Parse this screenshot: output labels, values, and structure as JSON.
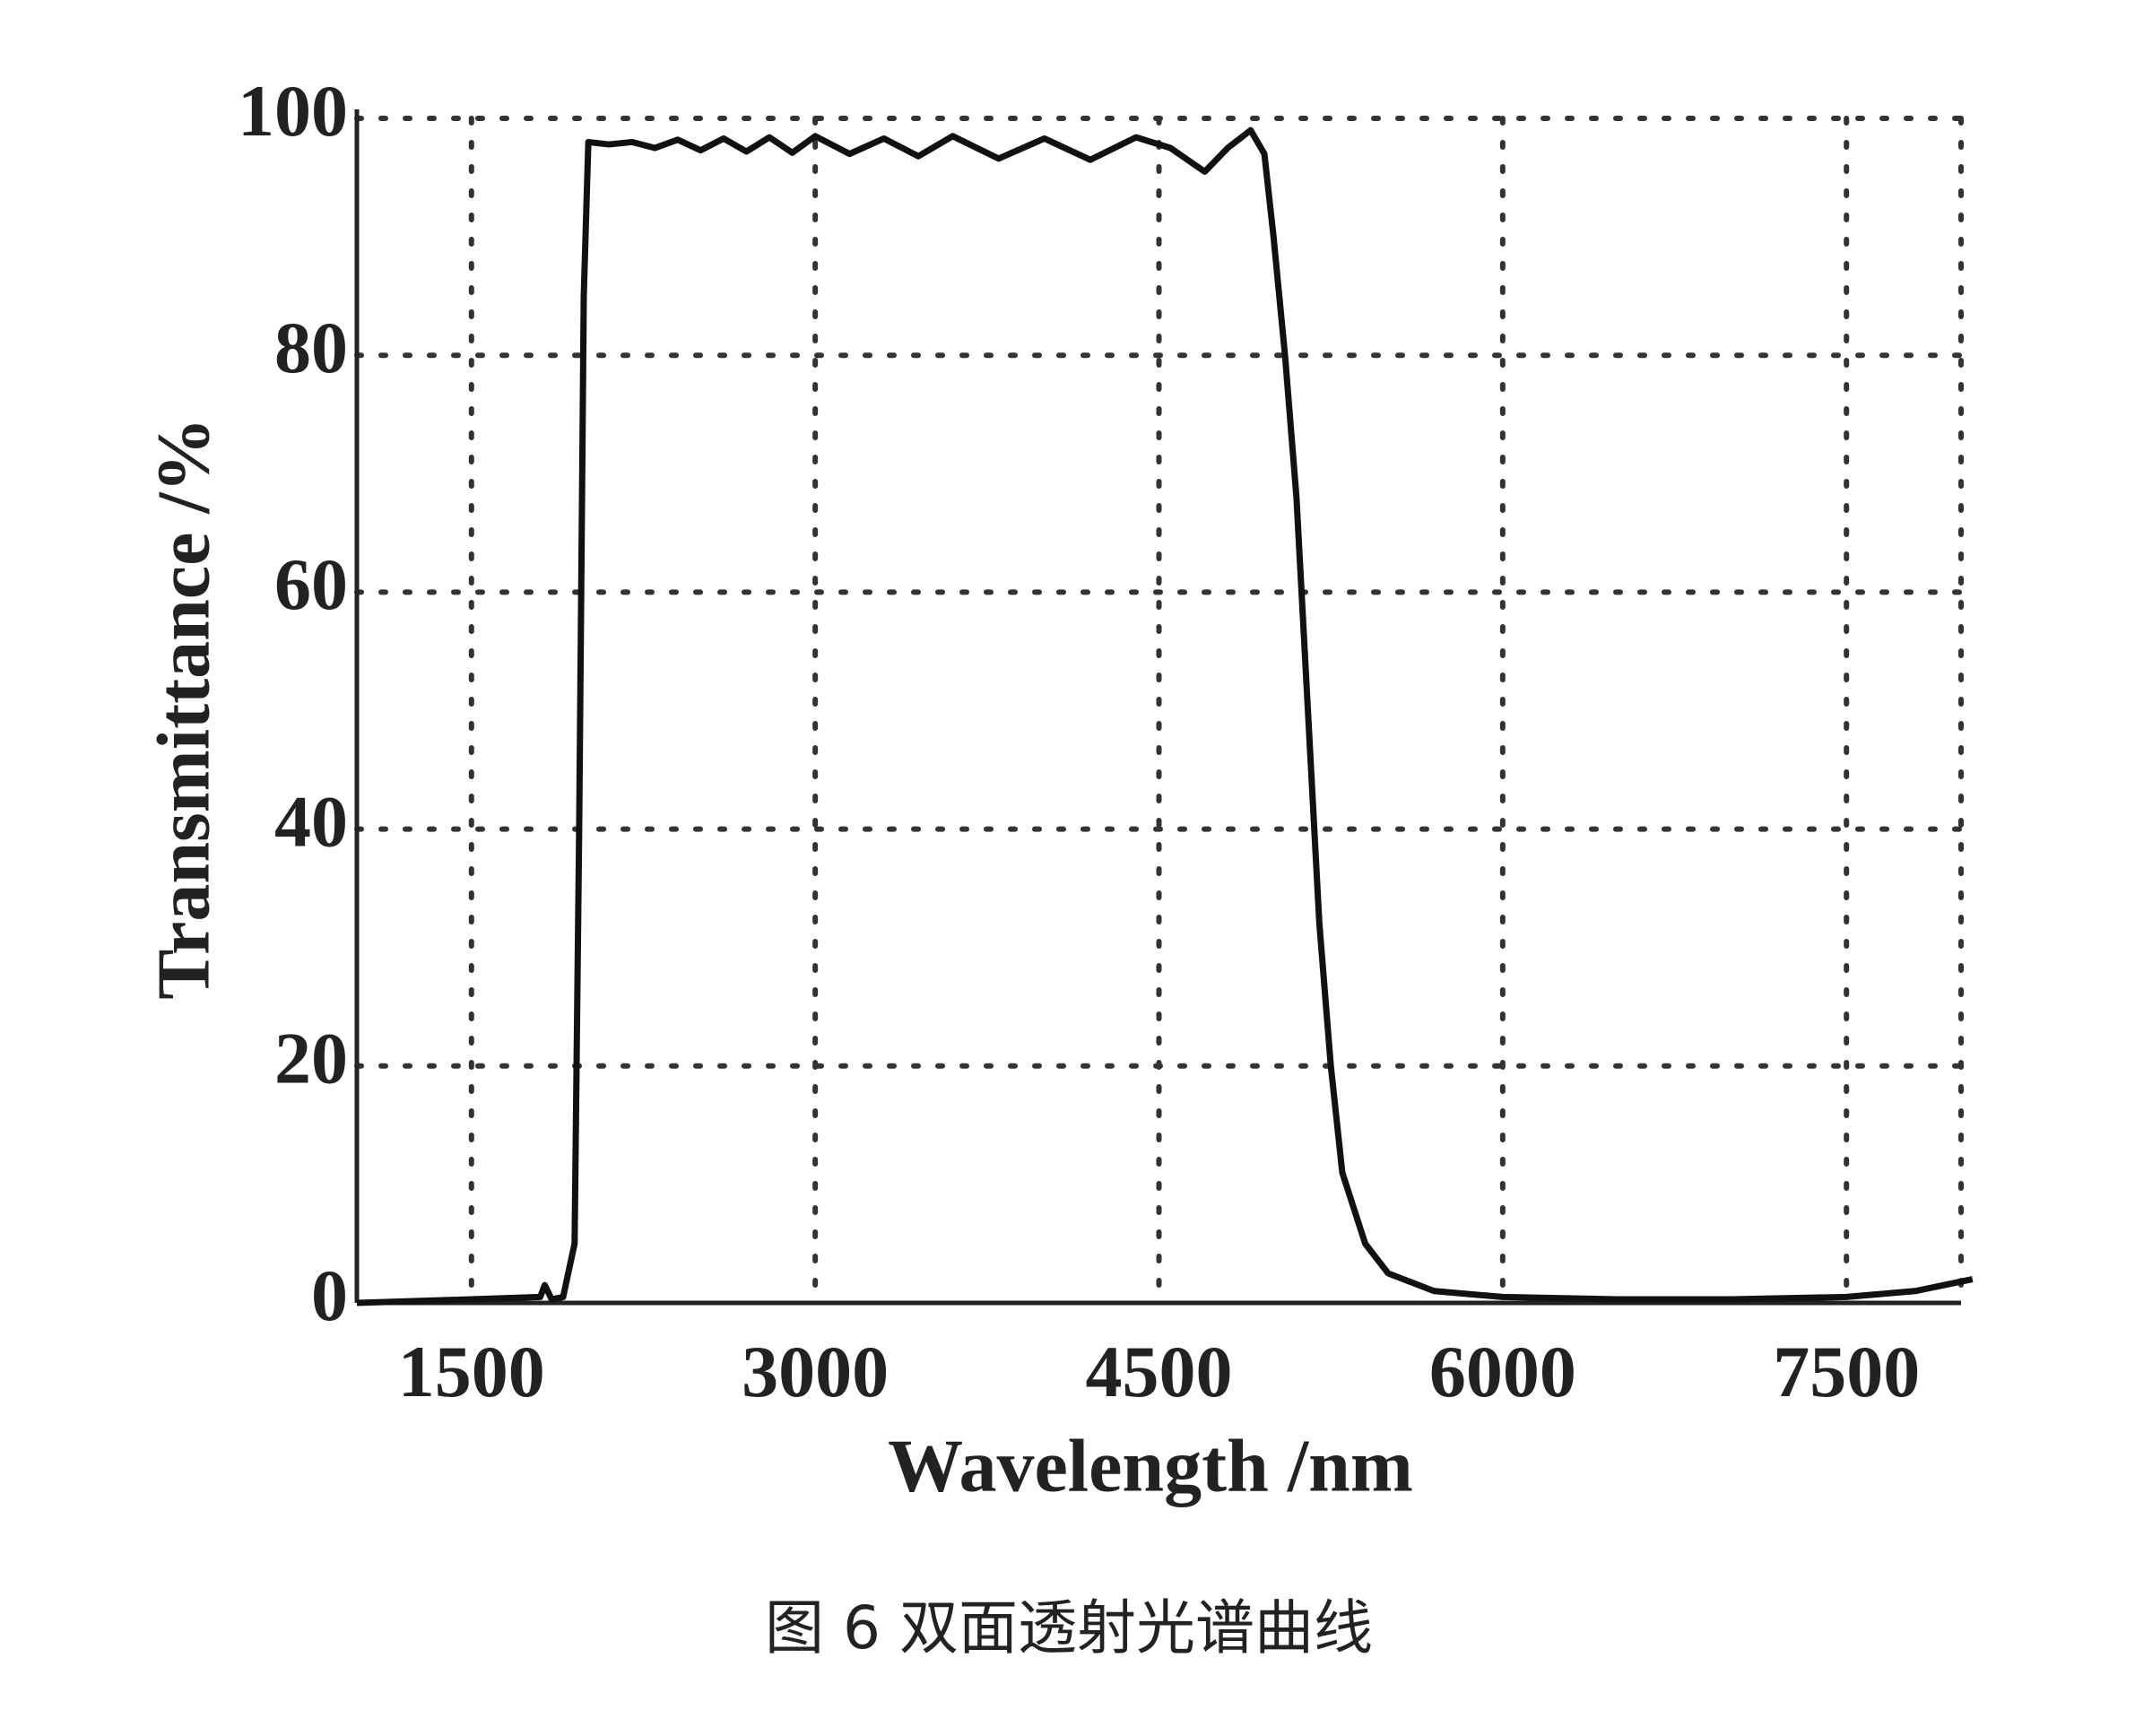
{
  "chart_data": {
    "type": "line",
    "x_label": "Wavelength /nm",
    "y_label": "Transmittance /%",
    "caption": "图 6  双面透射光谱曲线",
    "xlim": [
      1000,
      8000
    ],
    "xticks": [
      1500,
      3000,
      4500,
      6000,
      7500
    ],
    "ylim": [
      0,
      100
    ],
    "yticks": [
      0,
      20,
      40,
      60,
      80,
      100
    ],
    "grid": true,
    "series": [
      {
        "color": "#111111",
        "x": [
          1000,
          1500,
          1800,
          1820,
          1850,
          1900,
          1950,
          1970,
          1990,
          2010,
          2100,
          2200,
          2300,
          2400,
          2500,
          2600,
          2700,
          2800,
          2900,
          3000,
          3150,
          3300,
          3450,
          3600,
          3800,
          4000,
          4200,
          4400,
          4550,
          4700,
          4800,
          4900,
          4960,
          5000,
          5050,
          5100,
          5150,
          5200,
          5250,
          5300,
          5400,
          5500,
          5700,
          6000,
          6500,
          7000,
          7500,
          7800,
          8050
        ],
        "values": [
          0,
          0.3,
          0.5,
          1.5,
          0.3,
          0.5,
          5,
          40,
          85,
          98,
          97.8,
          98,
          97.5,
          98.2,
          97.3,
          98.3,
          97.2,
          98.4,
          97.1,
          98.5,
          97,
          98.3,
          96.8,
          98.5,
          96.6,
          98.3,
          96.5,
          98.4,
          97.5,
          95.5,
          97.5,
          99,
          97,
          90,
          80,
          68,
          50,
          32,
          20,
          11,
          5,
          2.5,
          1,
          0.5,
          0.3,
          0.3,
          0.5,
          1,
          2
        ]
      }
    ]
  }
}
